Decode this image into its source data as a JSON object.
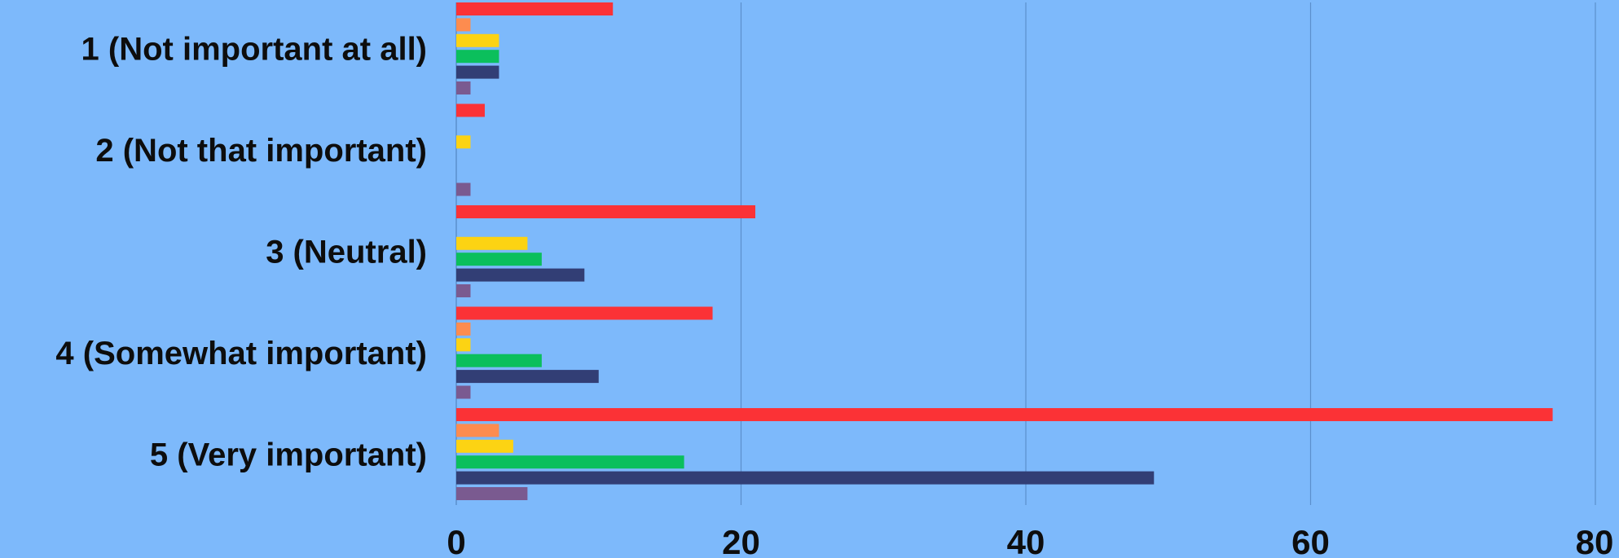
{
  "chart_data": {
    "type": "bar",
    "orientation": "horizontal",
    "categories": [
      "1 (Not important at all)",
      "2 (Not that important)",
      "3 (Neutral)",
      "4 (Somewhat important)",
      "5 (Very important)"
    ],
    "series": [
      {
        "color": "#fb3236",
        "values": [
          11,
          2,
          21,
          18,
          77
        ]
      },
      {
        "color": "#fd8c4f",
        "values": [
          1,
          0,
          0,
          1,
          3
        ]
      },
      {
        "color": "#fcd313",
        "values": [
          3,
          1,
          5,
          1,
          4
        ]
      },
      {
        "color": "#0bbf5c",
        "values": [
          3,
          0,
          6,
          6,
          16
        ]
      },
      {
        "color": "#323e75",
        "values": [
          3,
          0,
          9,
          10,
          49
        ]
      },
      {
        "color": "#7a5a90",
        "values": [
          1,
          1,
          1,
          1,
          5
        ]
      }
    ],
    "x_ticks": [
      "0",
      "20",
      "40",
      "60",
      "80"
    ],
    "xlim": [
      0,
      80
    ],
    "grid": "vertical",
    "legend": "none",
    "background": "#7db9fb",
    "gridline_color": "#5b8fcc"
  }
}
